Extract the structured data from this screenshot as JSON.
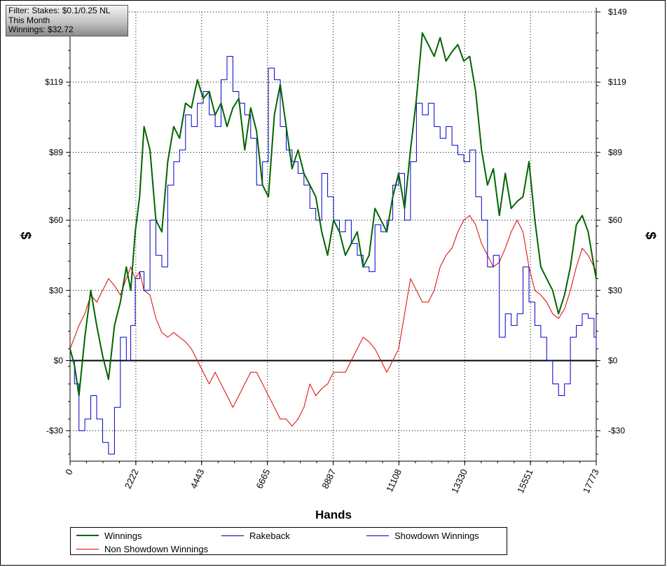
{
  "info_box": {
    "filter": "Filter: Stakes: $0.1/0.25 NL",
    "period": "This Month",
    "winnings": "Winnings: $32.72"
  },
  "colors": {
    "winnings": "#006400",
    "rakeback": "#00008b",
    "showdown": "#0000cd",
    "non_showdown": "#dd0000",
    "zero_line": "#000000",
    "grid": "#000000"
  },
  "chart_data": {
    "type": "line",
    "title": "",
    "xlabel": "Hands",
    "ylabel": "$",
    "ylabel_right": "$",
    "xlim": [
      0,
      17773
    ],
    "ylim": [
      -43,
      149
    ],
    "x_ticks": [
      0,
      2222,
      4443,
      6665,
      8887,
      11108,
      13330,
      15551,
      17773
    ],
    "x_tick_labels": [
      "0",
      "2222",
      "4443",
      "6665",
      "8887",
      "11108",
      "13330",
      "15551",
      "17773"
    ],
    "y_ticks": [
      -30,
      0,
      30,
      60,
      89,
      119,
      149
    ],
    "y_tick_labels": [
      "-$30",
      "$0",
      "$30",
      "$60",
      "$89",
      "$119",
      "$149"
    ],
    "grid": true,
    "legend_position": "bottom",
    "series": [
      {
        "name": "Winnings",
        "x": [
          0,
          150,
          300,
          500,
          700,
          900,
          1100,
          1300,
          1500,
          1700,
          1900,
          2050,
          2200,
          2350,
          2500,
          2700,
          2900,
          3100,
          3300,
          3500,
          3700,
          3900,
          4100,
          4300,
          4500,
          4700,
          4900,
          5100,
          5300,
          5500,
          5700,
          5900,
          6100,
          6300,
          6500,
          6700,
          6900,
          7100,
          7300,
          7500,
          7700,
          7900,
          8100,
          8300,
          8500,
          8700,
          8900,
          9100,
          9300,
          9500,
          9700,
          9900,
          10100,
          10300,
          10500,
          10700,
          10900,
          11100,
          11300,
          11500,
          11700,
          11900,
          12100,
          12300,
          12500,
          12700,
          12900,
          13100,
          13300,
          13500,
          13700,
          13900,
          14100,
          14300,
          14500,
          14700,
          14900,
          15100,
          15300,
          15500,
          15700,
          15900,
          16100,
          16300,
          16500,
          16700,
          16900,
          17100,
          17300,
          17500,
          17700,
          17773
        ],
        "y": [
          5,
          -2,
          -15,
          10,
          30,
          15,
          2,
          -8,
          15,
          25,
          40,
          30,
          55,
          70,
          100,
          90,
          60,
          55,
          85,
          100,
          95,
          110,
          108,
          120,
          112,
          115,
          105,
          110,
          100,
          108,
          112,
          90,
          108,
          98,
          75,
          70,
          105,
          118,
          100,
          82,
          90,
          80,
          75,
          70,
          55,
          45,
          60,
          55,
          45,
          50,
          55,
          40,
          45,
          65,
          60,
          55,
          70,
          80,
          65,
          90,
          112,
          140,
          135,
          130,
          138,
          128,
          132,
          135,
          128,
          130,
          115,
          90,
          75,
          82,
          62,
          80,
          65,
          68,
          70,
          85,
          60,
          40,
          35,
          30,
          20,
          28,
          40,
          58,
          62,
          55,
          40,
          35
        ]
      },
      {
        "name": "Rakeback",
        "x": [],
        "y": []
      },
      {
        "name": "Showdown Winnings",
        "x": [
          0,
          150,
          300,
          500,
          700,
          900,
          1100,
          1300,
          1500,
          1700,
          1900,
          2050,
          2200,
          2350,
          2500,
          2700,
          2900,
          3100,
          3300,
          3500,
          3700,
          3900,
          4100,
          4300,
          4500,
          4700,
          4900,
          5100,
          5300,
          5500,
          5700,
          5900,
          6100,
          6300,
          6500,
          6700,
          6900,
          7100,
          7300,
          7500,
          7700,
          7900,
          8100,
          8300,
          8500,
          8700,
          8900,
          9100,
          9300,
          9500,
          9700,
          9900,
          10100,
          10300,
          10500,
          10700,
          10900,
          11100,
          11300,
          11500,
          11700,
          11900,
          12100,
          12300,
          12500,
          12700,
          12900,
          13100,
          13300,
          13500,
          13700,
          13900,
          14100,
          14300,
          14500,
          14700,
          14900,
          15100,
          15300,
          15500,
          15700,
          15900,
          16100,
          16300,
          16500,
          16700,
          16900,
          17100,
          17300,
          17500,
          17700,
          17773
        ],
        "y": [
          0,
          -10,
          -30,
          -25,
          -15,
          -25,
          -35,
          -40,
          -20,
          10,
          0,
          15,
          35,
          38,
          30,
          60,
          45,
          40,
          75,
          85,
          90,
          105,
          100,
          110,
          115,
          105,
          100,
          120,
          130,
          115,
          110,
          105,
          95,
          75,
          85,
          125,
          120,
          100,
          90,
          85,
          80,
          75,
          65,
          60,
          80,
          70,
          60,
          55,
          60,
          50,
          45,
          40,
          38,
          58,
          55,
          60,
          75,
          80,
          60,
          85,
          110,
          105,
          110,
          100,
          95,
          100,
          92,
          88,
          85,
          90,
          70,
          60,
          40,
          45,
          10,
          20,
          15,
          20,
          40,
          25,
          15,
          10,
          0,
          -10,
          -15,
          -10,
          10,
          15,
          20,
          18,
          10,
          5
        ]
      },
      {
        "name": "Non Showdown Winnings",
        "x": [
          0,
          300,
          500,
          700,
          900,
          1100,
          1300,
          1500,
          1700,
          1900,
          2050,
          2200,
          2350,
          2500,
          2700,
          2900,
          3100,
          3300,
          3500,
          3700,
          3900,
          4100,
          4300,
          4500,
          4700,
          4900,
          5100,
          5300,
          5500,
          5700,
          5900,
          6100,
          6300,
          6500,
          6700,
          6900,
          7100,
          7300,
          7500,
          7700,
          7900,
          8100,
          8300,
          8500,
          8700,
          8900,
          9100,
          9300,
          9500,
          9700,
          9900,
          10100,
          10300,
          10500,
          10700,
          10900,
          11100,
          11300,
          11500,
          11700,
          11900,
          12100,
          12300,
          12500,
          12700,
          12900,
          13100,
          13300,
          13500,
          13700,
          13900,
          14100,
          14300,
          14500,
          14700,
          14900,
          15100,
          15300,
          15500,
          15700,
          15900,
          16100,
          16300,
          16500,
          16700,
          16900,
          17100,
          17300,
          17500,
          17700,
          17773
        ],
        "y": [
          5,
          15,
          20,
          28,
          25,
          30,
          35,
          32,
          28,
          35,
          40,
          35,
          38,
          30,
          28,
          18,
          12,
          10,
          12,
          10,
          8,
          5,
          0,
          -5,
          -10,
          -5,
          -10,
          -15,
          -20,
          -15,
          -10,
          -5,
          -5,
          -10,
          -15,
          -20,
          -25,
          -25,
          -28,
          -25,
          -20,
          -10,
          -15,
          -12,
          -10,
          -5,
          -5,
          -5,
          0,
          5,
          10,
          8,
          5,
          0,
          -5,
          0,
          5,
          20,
          35,
          30,
          25,
          25,
          30,
          40,
          45,
          48,
          55,
          60,
          62,
          58,
          50,
          45,
          40,
          42,
          48,
          55,
          60,
          55,
          40,
          30,
          28,
          25,
          20,
          18,
          22,
          30,
          40,
          48,
          45,
          40,
          38
        ]
      }
    ]
  },
  "legend": {
    "items": [
      {
        "label": "Winnings"
      },
      {
        "label": "Rakeback"
      },
      {
        "label": "Showdown Winnings"
      },
      {
        "label": "Non Showdown Winnings"
      }
    ]
  }
}
